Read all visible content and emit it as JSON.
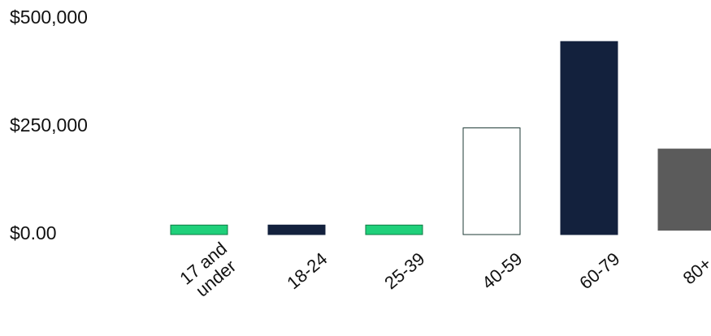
{
  "chart_data": {
    "type": "bar",
    "title": "",
    "xlabel": "",
    "ylabel": "",
    "categories": [
      "17 and under",
      "18-24",
      "25-39",
      "40-59",
      "60-79",
      "80+"
    ],
    "x_tick_lines": [
      [
        "17 and",
        "under"
      ],
      [
        "18-24"
      ],
      [
        "25-39"
      ],
      [
        "40-59"
      ],
      [
        "60-79"
      ],
      [
        "80+"
      ]
    ],
    "bars": [
      {
        "category": "17 and under",
        "low": 0,
        "high": 22000,
        "fill": "#1fd07a",
        "stroke": "#0f7a44"
      },
      {
        "category": "18-24",
        "low": 0,
        "high": 22000,
        "fill": "#13213d",
        "stroke": "#13213d"
      },
      {
        "category": "25-39",
        "low": 0,
        "high": 22000,
        "fill": "#1fd07a",
        "stroke": "#0f7a44"
      },
      {
        "category": "40-59",
        "low": 0,
        "high": 247000,
        "fill": "#ffffff",
        "stroke": "#1e3a35"
      },
      {
        "category": "60-79",
        "low": 0,
        "high": 447000,
        "fill": "#13213d",
        "stroke": "#13213d"
      },
      {
        "category": "80+",
        "low": 10000,
        "high": 198000,
        "fill": "#5b5b5b",
        "stroke": "#5b5b5b"
      }
    ],
    "ylim": [
      0,
      500000
    ],
    "yticks": [
      {
        "value": 0,
        "label": "$0.00"
      },
      {
        "value": 250000,
        "label": "$250,000"
      },
      {
        "value": 500000,
        "label": "$500,000"
      }
    ],
    "grid": false,
    "legend": "none"
  }
}
